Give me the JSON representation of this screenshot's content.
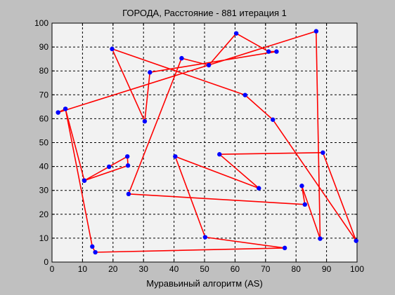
{
  "chart_data": {
    "type": "line",
    "title": "ГОРОДА, Расстояние - 881 итерация 1",
    "xlabel": "Муравьиный алгоритм (AS)",
    "ylabel": "",
    "xlim": [
      0,
      100
    ],
    "ylim": [
      0,
      100
    ],
    "xticks": [
      0,
      10,
      20,
      30,
      40,
      50,
      60,
      70,
      80,
      90,
      100
    ],
    "yticks": [
      0,
      10,
      20,
      30,
      40,
      50,
      60,
      70,
      80,
      90,
      100
    ],
    "grid": true,
    "series": [
      {
        "line_color": "#ff0000",
        "marker_color": "#0000ff",
        "closed": true,
        "points": [
          [
            2,
            62.6
          ],
          [
            4.4,
            64.1
          ],
          [
            13.2,
            6.5
          ],
          [
            14.2,
            4.1
          ],
          [
            76.3,
            5.9
          ],
          [
            50.2,
            10.4
          ],
          [
            40.4,
            44.2
          ],
          [
            67.8,
            30.9
          ],
          [
            54.9,
            45.1
          ],
          [
            88.8,
            45.8
          ],
          [
            99.7,
            8.9
          ],
          [
            72.4,
            59.6
          ],
          [
            63.3,
            69.9
          ],
          [
            19.7,
            89.2
          ],
          [
            30.4,
            58.9
          ],
          [
            32.1,
            79.4
          ],
          [
            73.6,
            88.1
          ],
          [
            71,
            88.1
          ],
          [
            60.4,
            95.7
          ],
          [
            51.4,
            82.4
          ],
          [
            42.5,
            85.3
          ],
          [
            25.1,
            28.5
          ],
          [
            82.9,
            24.1
          ],
          [
            81.9,
            31.9
          ],
          [
            87.9,
            9.8
          ],
          [
            86.6,
            96.6
          ],
          [
            2,
            62.6
          ]
        ]
      },
      {
        "line_color": "#ff0000",
        "marker_color": "#0000ff",
        "points": [
          [
            4.4,
            64.1
          ],
          [
            10.6,
            34.1
          ],
          [
            18.7,
            39.9
          ],
          [
            24.7,
            44.2
          ],
          [
            24.9,
            40.4
          ],
          [
            10.6,
            34.1
          ]
        ]
      }
    ]
  }
}
